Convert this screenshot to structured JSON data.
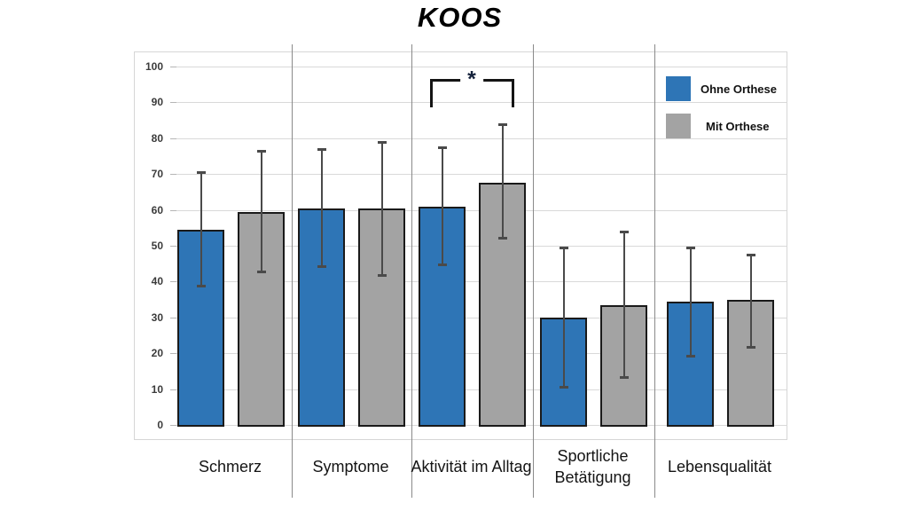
{
  "chart_data": {
    "type": "bar",
    "title": "KOOS",
    "categories": [
      "Schmerz",
      "Symptome",
      "Aktivität im Alltag",
      "Sportliche Betätigung",
      "Lebensqualität"
    ],
    "series": [
      {
        "name": "Ohne Orthese",
        "color": "#2E75B6",
        "values": [
          54.5,
          60.5,
          61,
          30,
          34.5
        ],
        "error_high": [
          70.5,
          77,
          77.5,
          49.5,
          49.5
        ],
        "error_low": [
          38.5,
          44,
          44.5,
          10.5,
          19
        ]
      },
      {
        "name": "Mit Orthese",
        "color": "#A3A3A3",
        "values": [
          59.5,
          60.5,
          67.5,
          33.5,
          35
        ],
        "error_high": [
          76.5,
          79,
          84,
          54,
          47.5
        ],
        "error_low": [
          42.5,
          41.5,
          52,
          13,
          21.5
        ]
      }
    ],
    "ylim": [
      0,
      100
    ],
    "ytick_step": 10,
    "ytick_labels": [
      "0",
      "10",
      "20",
      "30",
      "40",
      "50",
      "60",
      "70",
      "80",
      "90",
      "100"
    ],
    "grid": true,
    "legend_position": "top-right",
    "significance": {
      "category_index": 2,
      "label": "*"
    }
  },
  "colors": {
    "bar_border": "#1a1a1a",
    "error_bar": "#4a4a4a",
    "gridline": "#d9d9d9",
    "separator": "#8a8a8a",
    "frame_border": "#d6d6d6"
  }
}
